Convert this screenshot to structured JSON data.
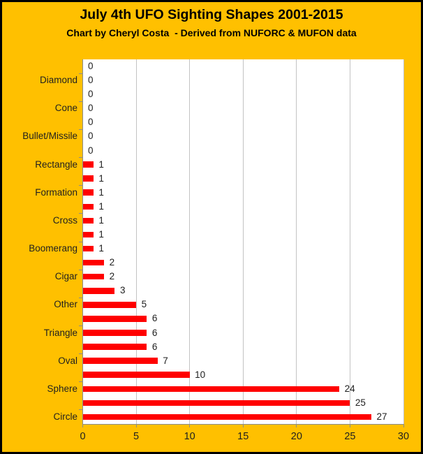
{
  "header": {
    "title": "July 4th UFO Sighting Shapes 2001-2015",
    "subtitle": "Chart by Cheryl Costa  - Derived from NUFORC & MUFON data"
  },
  "colors": {
    "frame_background": "#FFC000",
    "frame_border": "#000000",
    "plot_background": "#FFFFFF",
    "bar": "#FF0000",
    "gridline": "#C3C3C3",
    "axis_line": "#8C8C8C",
    "tick_mark": "#8C8C8C",
    "label_text": "#1F1F1F",
    "title_text": "#000000"
  },
  "chart_data": {
    "type": "bar",
    "orientation": "horizontal",
    "title": "July 4th UFO Sighting Shapes 2001-2015",
    "subtitle": "Chart by Cheryl Costa  - Derived from NUFORC & MUFON data",
    "categories_top_to_bottom": [
      "",
      "Diamond",
      "",
      "Cone",
      "",
      "Bullet/Missile",
      "",
      "Rectangle",
      "",
      "Formation",
      "",
      "Cross",
      "",
      "Boomerang",
      "",
      "Cigar",
      "",
      "Other",
      "",
      "Triangle",
      "",
      "Oval",
      "",
      "Sphere",
      "",
      "Circle"
    ],
    "values": [
      0,
      0,
      0,
      0,
      0,
      0,
      0,
      1,
      1,
      1,
      1,
      1,
      1,
      1,
      2,
      2,
      3,
      5,
      6,
      6,
      6,
      7,
      10,
      24,
      25,
      27
    ],
    "xlabel": "",
    "ylabel": "",
    "xlim": [
      0,
      30
    ],
    "xticks": [
      0,
      5,
      10,
      15,
      20,
      25,
      30
    ],
    "grid": true,
    "legend": false,
    "show_data_labels": true
  }
}
